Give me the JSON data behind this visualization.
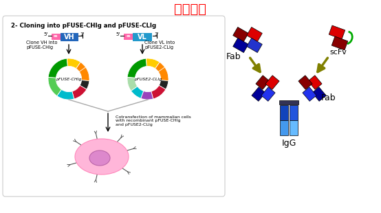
{
  "title": "抗体改造",
  "title_color": "#FF0000",
  "title_fontsize": 14,
  "bg_color": "#FFFFFF",
  "panel_bg": "#FFFFFF",
  "panel_border": "#CCCCCC",
  "left_title": "2- Cloning into pFUSE-CHIg and pFUSE-CLIg",
  "arrow_color": "#808000",
  "label_fab_top": "Fab",
  "label_scfv": "scFv",
  "label_igg": "IgG",
  "label_fab_right": "Fab",
  "colors": {
    "red": "#DD0000",
    "dark_red": "#880000",
    "blue_dark": "#000088",
    "blue": "#0000CC",
    "blue_bright": "#0000FF",
    "light_blue": "#55AAFF",
    "sky_blue": "#66CCFF",
    "green": "#009900",
    "dark_green": "#006600",
    "light_green": "#88CC44",
    "orange": "#FF8800",
    "yellow": "#FFCC00",
    "purple": "#9933AA",
    "teal": "#00AACC",
    "cyan_light": "#00CCCC",
    "pink_cell": "#FFB6D9",
    "pink_nucleus": "#DD88CC",
    "magenta": "#FF44AA",
    "crimson": "#CC1133",
    "dark_blue_navy": "#000055",
    "olive": "#808000",
    "black_seg": "#222222",
    "gray": "#888888",
    "white_bg": "#F8F8F8"
  }
}
